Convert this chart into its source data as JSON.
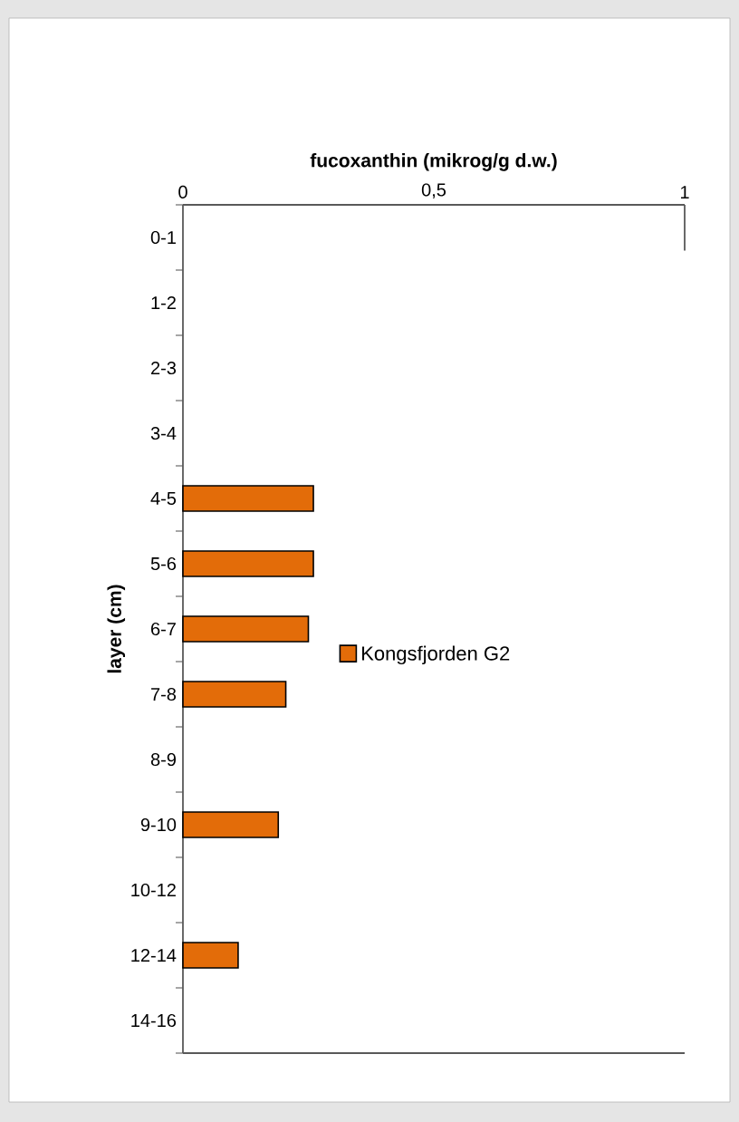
{
  "chart_data": {
    "type": "bar",
    "orientation": "horizontal",
    "title": "fucoxanthin (mikrog/g d.w.)",
    "ylabel": "layer (cm)",
    "categories": [
      "0-1",
      "1-2",
      "2-3",
      "3-4",
      "4-5",
      "5-6",
      "6-7",
      "7-8",
      "8-9",
      "9-10",
      "10-12",
      "12-14",
      "14-16"
    ],
    "series": [
      {
        "name": "Kongsfjorden G2",
        "color": "#e36c09",
        "values": [
          null,
          null,
          null,
          null,
          0.26,
          0.26,
          0.25,
          0.205,
          null,
          0.19,
          null,
          0.11,
          null
        ]
      }
    ],
    "xlim": [
      0,
      1
    ],
    "xticks": [
      0,
      {
        "value": 0.5,
        "label": "0,5"
      },
      1
    ],
    "legend": "right"
  }
}
